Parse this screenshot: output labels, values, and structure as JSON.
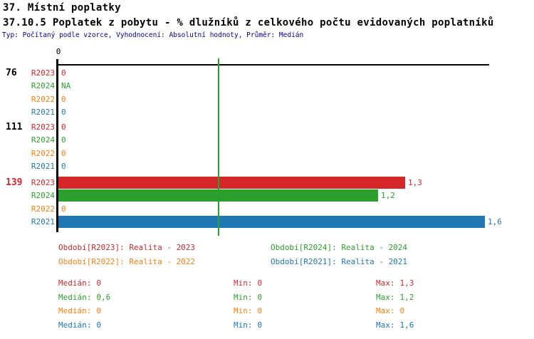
{
  "colors": {
    "red": "#d62728",
    "green": "#2ca02c",
    "orange": "#ff7f0e",
    "blue": "#1f77b4",
    "axis": "#000000",
    "median_line": "#2ca02c",
    "title": "#000000",
    "subtitle": "#00008b",
    "background": "#ffffff"
  },
  "header": {
    "section_title": "37. Místní poplatky",
    "indicator_title": "37.10.5 Poplatek z pobytu - % dlužníků z celkového počtu evidovaných poplatníků",
    "meta": "Typ: Počítaný podle vzorce, Vyhodnocení: Absolutní hodnoty, Průměr: Medián"
  },
  "chart_data": {
    "type": "bar",
    "orientation": "horizontal",
    "xlim": [
      0,
      1.6
    ],
    "x_tick_labels": [
      "0"
    ],
    "grid": false,
    "median_line": {
      "series": "R2024",
      "value": 0.6,
      "color": "#2ca02c"
    },
    "series_colors": {
      "R2023": "#d62728",
      "R2024": "#2ca02c",
      "R2022": "#ff7f0e",
      "R2021": "#1f77b4"
    },
    "groups": [
      {
        "label": "76",
        "label_color": "#000000",
        "rows": [
          {
            "series": "R2023",
            "value": 0,
            "display": "0"
          },
          {
            "series": "R2024",
            "value": null,
            "display": "NA"
          },
          {
            "series": "R2022",
            "value": 0,
            "display": "0"
          },
          {
            "series": "R2021",
            "value": 0,
            "display": "0"
          }
        ]
      },
      {
        "label": "111",
        "label_color": "#000000",
        "rows": [
          {
            "series": "R2023",
            "value": 0,
            "display": "0"
          },
          {
            "series": "R2024",
            "value": 0,
            "display": "0"
          },
          {
            "series": "R2022",
            "value": 0,
            "display": "0"
          },
          {
            "series": "R2021",
            "value": 0,
            "display": "0"
          }
        ]
      },
      {
        "label": "139",
        "label_color": "#d62728",
        "rows": [
          {
            "series": "R2023",
            "value": 1.3,
            "display": "1,3"
          },
          {
            "series": "R2024",
            "value": 1.2,
            "display": "1,2"
          },
          {
            "series": "R2022",
            "value": 0,
            "display": "0"
          },
          {
            "series": "R2021",
            "value": 1.6,
            "display": "1,6"
          }
        ]
      }
    ]
  },
  "legend": {
    "items": [
      {
        "series": "R2023",
        "label": "Období[R2023]: Realita - 2023",
        "color": "#d62728"
      },
      {
        "series": "R2024",
        "label": "Období[R2024]: Realita - 2024",
        "color": "#2ca02c"
      },
      {
        "series": "R2022",
        "label": "Období[R2022]: Realita - 2022",
        "color": "#ff7f0e"
      },
      {
        "series": "R2021",
        "label": "Období[R2021]: Realita - 2021",
        "color": "#1f77b4"
      }
    ]
  },
  "stats": {
    "rows": [
      {
        "series": "R2023",
        "color": "#d62728",
        "cells": [
          {
            "label": "Medián:",
            "value": "0"
          },
          {
            "label": "Min:",
            "value": "0"
          },
          {
            "label": "Max:",
            "value": "1,3"
          }
        ]
      },
      {
        "series": "R2024",
        "color": "#2ca02c",
        "cells": [
          {
            "label": "Medián:",
            "value": "0,6"
          },
          {
            "label": "Min:",
            "value": "0"
          },
          {
            "label": "Max:",
            "value": "1,2"
          }
        ]
      },
      {
        "series": "R2022",
        "color": "#ff7f0e",
        "cells": [
          {
            "label": "Medián:",
            "value": "0"
          },
          {
            "label": "Min:",
            "value": "0"
          },
          {
            "label": "Max:",
            "value": "0"
          }
        ]
      },
      {
        "series": "R2021",
        "color": "#1f77b4",
        "cells": [
          {
            "label": "Medián:",
            "value": "0"
          },
          {
            "label": "Min:",
            "value": "0"
          },
          {
            "label": "Max:",
            "value": "1,6"
          }
        ]
      }
    ]
  }
}
